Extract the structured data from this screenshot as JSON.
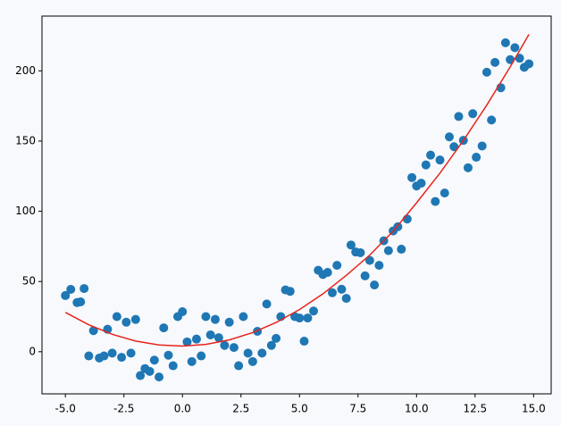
{
  "chart_data": {
    "type": "scatter",
    "xlim": [
      -6,
      15.75
    ],
    "ylim": [
      -30,
      239
    ],
    "xticks": [
      {
        "value": -5,
        "label": "-5.0"
      },
      {
        "value": -2.5,
        "label": "-2.5"
      },
      {
        "value": 0,
        "label": "0.0"
      },
      {
        "value": 2.5,
        "label": "2.5"
      },
      {
        "value": 5,
        "label": "5.0"
      },
      {
        "value": 7.5,
        "label": "7.5"
      },
      {
        "value": 10,
        "label": "10.0"
      },
      {
        "value": 12.5,
        "label": "12.5"
      },
      {
        "value": 15,
        "label": "15.0"
      }
    ],
    "yticks": [
      0,
      50,
      100,
      150,
      200
    ],
    "series": [
      {
        "type": "scatter",
        "color": "#1f77b4",
        "x": [
          -5.0,
          -4.77,
          -4.5,
          -4.35,
          -4.2,
          -4.0,
          -3.8,
          -3.55,
          -3.35,
          -3.2,
          -3.0,
          -2.8,
          -2.6,
          -2.4,
          -2.2,
          -2.0,
          -1.8,
          -1.6,
          -1.4,
          -1.2,
          -1.0,
          -0.8,
          -0.6,
          -0.4,
          -0.2,
          0.0,
          0.2,
          0.4,
          0.6,
          0.8,
          1.0,
          1.2,
          1.4,
          1.55,
          1.8,
          2.0,
          2.2,
          2.4,
          2.6,
          2.8,
          3.0,
          3.2,
          3.4,
          3.6,
          3.8,
          4.0,
          4.2,
          4.4,
          4.6,
          4.8,
          5.0,
          5.2,
          5.35,
          5.6,
          5.8,
          6.0,
          6.2,
          6.4,
          6.6,
          6.8,
          7.0,
          7.2,
          7.4,
          7.6,
          7.8,
          8.0,
          8.2,
          8.4,
          8.6,
          8.8,
          9.0,
          9.2,
          9.35,
          9.6,
          9.8,
          10.0,
          10.2,
          10.4,
          10.6,
          10.8,
          11.0,
          11.2,
          11.4,
          11.6,
          11.8,
          12.0,
          12.2,
          12.4,
          12.55,
          12.8,
          13.0,
          13.2,
          13.35,
          13.6,
          13.8,
          14.0,
          14.2,
          14.4,
          14.6,
          14.8
        ],
        "values": [
          40,
          44.4,
          35,
          35.5,
          45,
          -3,
          15,
          -4.5,
          -3,
          16,
          -1,
          25,
          -4,
          21,
          -1,
          23,
          -17,
          -12,
          -14,
          -6,
          -18,
          17,
          -2.5,
          -10,
          25,
          28.5,
          7,
          -7,
          9,
          -3,
          25,
          12,
          23,
          10,
          4.5,
          21,
          3,
          -10,
          25,
          -1,
          -7,
          14.5,
          -1,
          34,
          4.5,
          9.5,
          25,
          44,
          43,
          25,
          24,
          7.5,
          24,
          29,
          58,
          55,
          56.5,
          42,
          61.5,
          44.5,
          38,
          76,
          71,
          70.5,
          54,
          65,
          47.5,
          61.5,
          79,
          72,
          86,
          89,
          73,
          94.5,
          124,
          118,
          120,
          133,
          140,
          107,
          136.5,
          113,
          153,
          146,
          167.5,
          150.5,
          131,
          169.5,
          138.5,
          146.5,
          199,
          165,
          206,
          188,
          220,
          208,
          216.5,
          209,
          202.5,
          205
        ]
      },
      {
        "type": "line",
        "color": "#e8241c",
        "x": [
          -5,
          -4,
          -3,
          -2,
          -1,
          0,
          1,
          2,
          3,
          4,
          5,
          6,
          7,
          8,
          9,
          10,
          11,
          12,
          13,
          14,
          14.8
        ],
        "values": [
          28,
          19.2,
          12.4,
          7.6,
          4.8,
          4,
          5.2,
          8.4,
          13.6,
          20.8,
          30,
          41.2,
          54.4,
          68.8,
          85.8,
          106,
          127.2,
          150.4,
          175.6,
          202.8,
          226
        ]
      }
    ]
  }
}
